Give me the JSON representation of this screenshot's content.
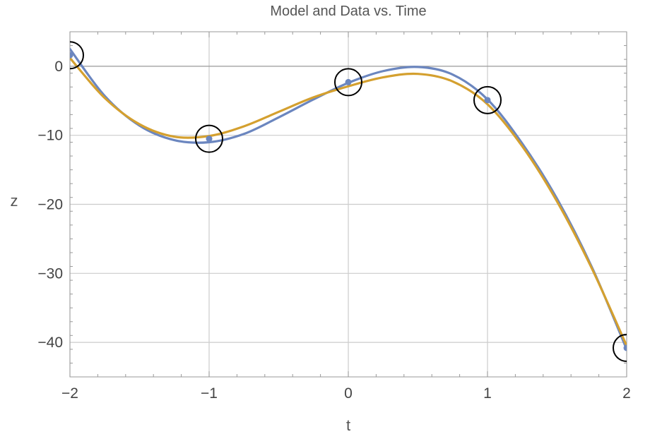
{
  "chart_data": {
    "type": "line",
    "title": "Model and Data vs. Time",
    "xlabel": "t",
    "ylabel": "z",
    "xlim": [
      -2,
      2
    ],
    "ylim": [
      -45,
      5
    ],
    "x_ticks": [
      -2,
      -1,
      0,
      1,
      2
    ],
    "x_tick_labels": [
      "−2",
      "−1",
      "0",
      "1",
      "2"
    ],
    "y_ticks": [
      0,
      -10,
      -20,
      -30,
      -40
    ],
    "y_tick_labels": [
      "0",
      "−10",
      "−20",
      "−30",
      "−40"
    ],
    "grid": true,
    "colors": {
      "series_blue": "#6b86bf",
      "series_orange": "#d4a02f",
      "points": "#6b86bf",
      "circles": "#000000",
      "grid": "#cccccc",
      "zero_line": "#999999",
      "frame": "#999999"
    },
    "series": [
      {
        "x": [
          -2,
          -1.75,
          -1.5,
          -1.25,
          -1,
          -0.75,
          -0.5,
          -0.25,
          0,
          0.25,
          0.5,
          0.75,
          1,
          1.25,
          1.5,
          1.75,
          2
        ],
        "values": [
          2.5,
          -4.3,
          -8.6,
          -10.7,
          -11.0,
          -9.8,
          -7.4,
          -4.8,
          -2.4,
          -0.7,
          -0.1,
          -1.2,
          -4.8,
          -11.2,
          -19.2,
          -29.1,
          -41.0
        ]
      },
      {
        "x": [
          -2,
          -1.75,
          -1.5,
          -1.25,
          -1,
          -0.75,
          -0.5,
          -0.25,
          0,
          0.25,
          0.5,
          0.75,
          1,
          1.25,
          1.5,
          1.75,
          2
        ],
        "values": [
          1.2,
          -4.6,
          -8.4,
          -10.2,
          -10.1,
          -8.7,
          -6.6,
          -4.5,
          -2.9,
          -1.6,
          -1.1,
          -2.2,
          -5.5,
          -11.6,
          -19.6,
          -29.3,
          -40.5
        ]
      }
    ],
    "points": {
      "x": [
        -2,
        -1,
        0,
        1,
        2
      ],
      "values": [
        1.6,
        -10.5,
        -2.3,
        -4.9,
        -40.8
      ]
    }
  }
}
